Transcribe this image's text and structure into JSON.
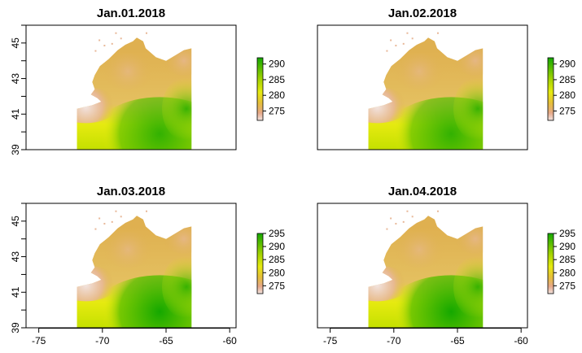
{
  "chart_data": [
    {
      "type": "heatmap",
      "title": "Jan.01.2018",
      "xlim": [
        -76,
        -59.5
      ],
      "ylim": [
        39,
        46
      ],
      "x_ticks": [
        -75,
        -70,
        -65,
        -60
      ],
      "y_ticks": [
        39,
        41,
        43,
        45
      ],
      "show_x_axis": false,
      "show_y_axis": true,
      "legend_ticks": [
        275,
        280,
        285,
        290
      ],
      "value_range": [
        272,
        292
      ],
      "grid": false,
      "legend_position": "right"
    },
    {
      "type": "heatmap",
      "title": "Jan.02.2018",
      "xlim": [
        -76,
        -59.5
      ],
      "ylim": [
        39,
        46
      ],
      "x_ticks": [
        -75,
        -70,
        -65,
        -60
      ],
      "y_ticks": [
        39,
        41,
        43,
        45
      ],
      "show_x_axis": false,
      "show_y_axis": false,
      "legend_ticks": [
        275,
        280,
        285,
        290
      ],
      "value_range": [
        272,
        292
      ],
      "grid": false,
      "legend_position": "right"
    },
    {
      "type": "heatmap",
      "title": "Jan.03.2018",
      "xlim": [
        -76,
        -59.5
      ],
      "ylim": [
        39,
        46
      ],
      "x_ticks": [
        -75,
        -70,
        -65,
        -60
      ],
      "y_ticks": [
        39,
        41,
        43,
        45
      ],
      "show_x_axis": true,
      "show_y_axis": true,
      "legend_ticks": [
        275,
        280,
        285,
        290,
        295
      ],
      "value_range": [
        272,
        295
      ],
      "grid": false,
      "legend_position": "right"
    },
    {
      "type": "heatmap",
      "title": "Jan.04.2018",
      "xlim": [
        -76,
        -59.5
      ],
      "ylim": [
        39,
        46
      ],
      "x_ticks": [
        -75,
        -70,
        -65,
        -60
      ],
      "y_ticks": [
        39,
        41,
        43,
        45
      ],
      "show_x_axis": true,
      "show_y_axis": false,
      "legend_ticks": [
        275,
        280,
        285,
        290,
        295
      ],
      "value_range": [
        272,
        295
      ],
      "grid": false,
      "legend_position": "right"
    }
  ],
  "colors": {
    "cold": "#f2e4e0",
    "cool": "#e8b898",
    "mid": "#dfb050",
    "warm": "#e6ea10",
    "hot": "#14a800",
    "axis": "#000000"
  }
}
